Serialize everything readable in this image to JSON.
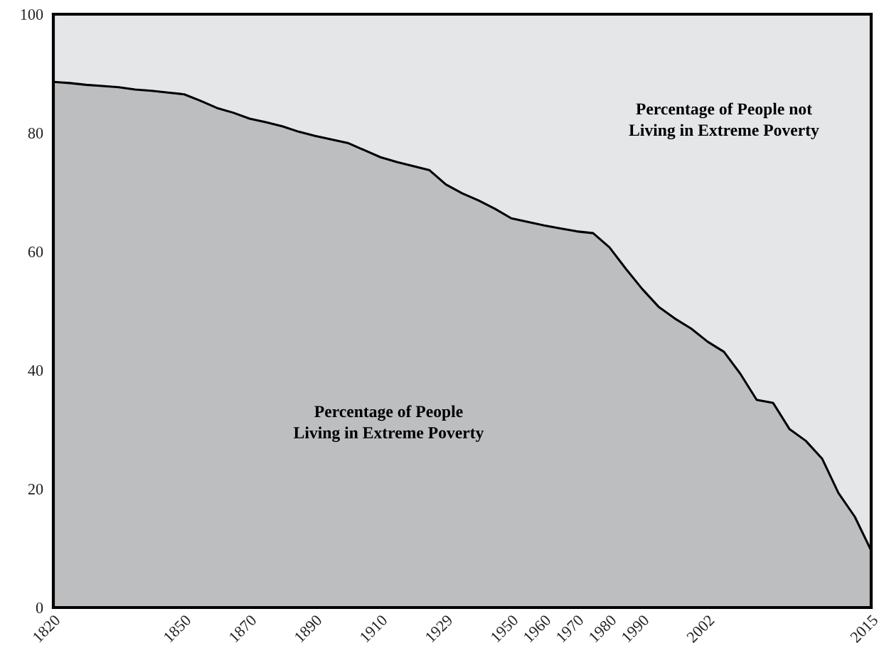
{
  "chart_data": {
    "type": "area",
    "stacked": true,
    "categories": [
      "1820",
      null,
      null,
      null,
      null,
      null,
      null,
      null,
      "1850",
      null,
      null,
      null,
      "1870",
      null,
      null,
      null,
      "1890",
      null,
      null,
      null,
      "1910",
      null,
      null,
      null,
      "1929",
      null,
      null,
      null,
      "1950",
      null,
      "1960",
      null,
      "1970",
      null,
      "1980",
      null,
      "1990",
      null,
      null,
      null,
      "2002",
      null,
      null,
      null,
      null,
      null,
      null,
      null,
      null,
      null,
      "2015"
    ],
    "series": [
      {
        "name": "Percentage of People\nLiving in Extreme Poverty",
        "color": "#bdbec0",
        "values": [
          88.6,
          88.4,
          88.1,
          87.9,
          87.7,
          87.3,
          87.1,
          86.8,
          86.5,
          85.4,
          84.2,
          83.4,
          82.4,
          81.8,
          81.1,
          80.2,
          79.5,
          78.9,
          78.3,
          77.1,
          75.9,
          75.1,
          74.4,
          73.7,
          71.3,
          69.8,
          68.6,
          67.2,
          65.6,
          65.0,
          64.4,
          63.9,
          63.4,
          63.1,
          60.7,
          57.1,
          53.7,
          50.7,
          48.7,
          47.0,
          44.8,
          43.1,
          39.4,
          35.0,
          34.5,
          30.1,
          28.1,
          25.1,
          19.3,
          15.3,
          9.6
        ]
      },
      {
        "name": "Percentage of People not\nLiving in Extreme Poverty",
        "color": "#e5e6e8",
        "values": [
          11.4,
          11.6,
          11.9,
          12.1,
          12.3,
          12.7,
          12.9,
          13.2,
          13.5,
          14.6,
          15.8,
          16.6,
          17.6,
          18.2,
          18.9,
          19.8,
          20.5,
          21.1,
          21.7,
          22.9,
          24.1,
          24.9,
          25.6,
          26.3,
          28.7,
          30.2,
          31.4,
          32.8,
          34.4,
          35.0,
          35.6,
          36.1,
          36.6,
          36.9,
          39.3,
          42.9,
          46.3,
          49.3,
          51.3,
          53.0,
          55.2,
          56.9,
          60.6,
          65.0,
          65.5,
          69.9,
          71.9,
          74.9,
          80.7,
          84.7,
          90.4
        ]
      }
    ],
    "ylim": [
      0,
      100
    ],
    "yticks": [
      0,
      20,
      40,
      60,
      80,
      100
    ]
  }
}
